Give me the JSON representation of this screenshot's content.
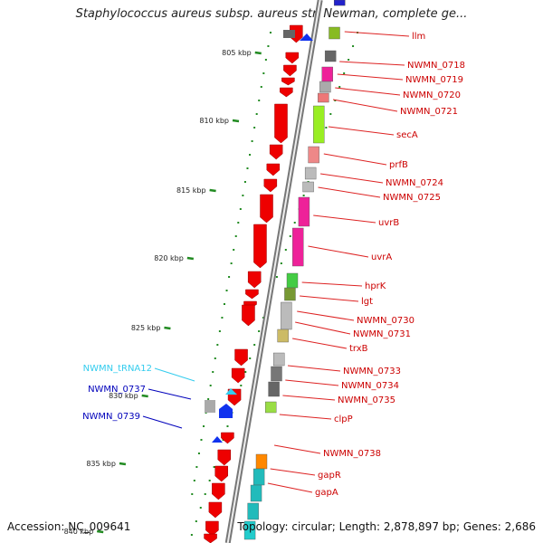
{
  "title": "Staphylococcus aureus subsp. aureus str. Newman, complete ge...",
  "footer": {
    "accession": "Accession: NC_009641",
    "topology": "Topology: circular; Length: 2,878,897 bp; Genes: 2,686"
  },
  "colors": {
    "gene_label": "#cc0000",
    "trna_label": "#33ccee",
    "blue_label": "#0000bb",
    "tick": "#228b22",
    "backbone": "#888888"
  },
  "ticks": [
    {
      "label": "805 kbp"
    },
    {
      "label": "810 kbp"
    },
    {
      "label": "815 kbp"
    },
    {
      "label": "820 kbp"
    },
    {
      "label": "825 kbp"
    },
    {
      "label": "830 kbp"
    },
    {
      "label": "835 kbp"
    },
    {
      "label": "840 kbp"
    }
  ],
  "right_labels": [
    "llm",
    "NWMN_0718",
    "NWMN_0719",
    "NWMN_0720",
    "NWMN_0721",
    "secA",
    "prfB",
    "NWMN_0724",
    "NWMN_0725",
    "uvrB",
    "uvrA",
    "hprK",
    "lgt",
    "NWMN_0730",
    "NWMN_0731",
    "trxB",
    "NWMN_0733",
    "NWMN_0734",
    "NWMN_0735",
    "clpP",
    "NWMN_0738",
    "gapR",
    "gapA"
  ],
  "left_labels": [
    "NWMN_tRNA12",
    "NWMN_0737",
    "NWMN_0739"
  ]
}
